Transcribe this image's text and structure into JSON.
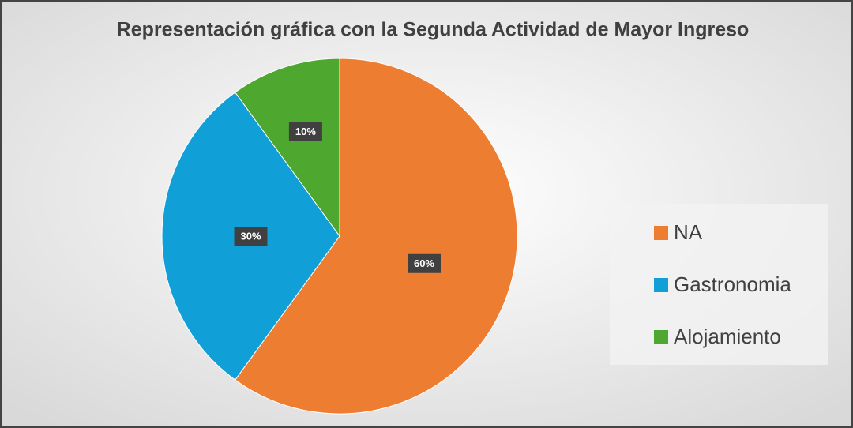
{
  "chart_data": {
    "type": "pie",
    "title": "Representación gráfica con la Segunda Actividad de Mayor Ingreso",
    "categories": [
      "NA",
      "Gastronomia",
      "Alojamiento"
    ],
    "values": [
      60,
      30,
      10
    ],
    "value_labels": [
      "60%",
      "30%",
      "10%"
    ],
    "colors": [
      "#ed7d31",
      "#119fd8",
      "#4ea72e"
    ],
    "legend": "right"
  }
}
